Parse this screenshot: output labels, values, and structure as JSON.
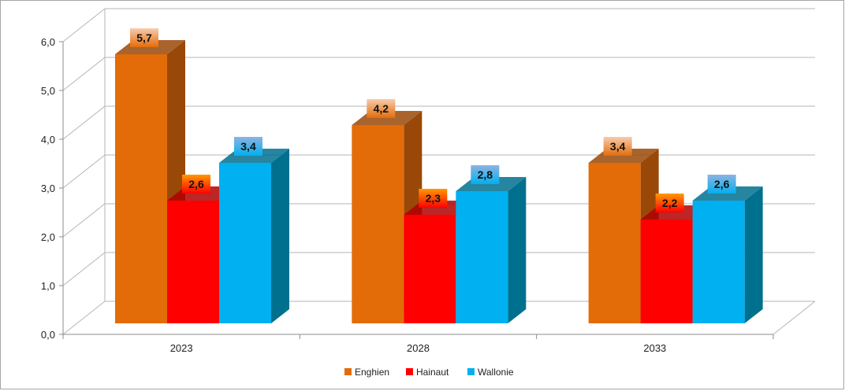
{
  "chart_data": {
    "type": "bar",
    "categories": [
      "2023",
      "2028",
      "2033"
    ],
    "series": [
      {
        "name": "Enghien",
        "values": [
          5.7,
          4.2,
          3.4
        ],
        "color": "#E36C09",
        "side_color": "#9A4807",
        "label_bg": "#F8CBAD"
      },
      {
        "name": "Hainaut",
        "values": [
          2.6,
          2.3,
          2.2
        ],
        "color": "#FF0000",
        "side_color": "#B00000",
        "label_bg": "#FF9900"
      },
      {
        "name": "Wallonie",
        "values": [
          3.4,
          2.8,
          2.6
        ],
        "color": "#00B0F0",
        "side_color": "#00708F",
        "label_bg": "#8DB3E2"
      }
    ],
    "data_labels": [
      [
        "5,7",
        "4,2",
        "3,4"
      ],
      [
        "2,6",
        "2,3",
        "2,2"
      ],
      [
        "3,4",
        "2,8",
        "2,6"
      ]
    ],
    "y_ticks": [
      "0,0",
      "1,0",
      "2,0",
      "3,0",
      "4,0",
      "5,0",
      "6,0"
    ],
    "ylim": [
      0,
      6
    ],
    "grid": true,
    "legend_position": "bottom",
    "title": "",
    "xlabel": "",
    "ylabel": ""
  }
}
